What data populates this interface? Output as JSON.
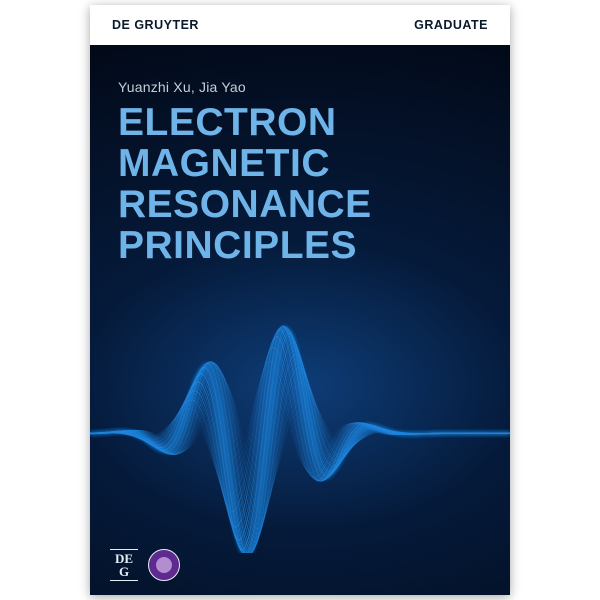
{
  "header": {
    "publisher": "De Gruyter",
    "series": "Graduate",
    "bar_bg": "#ffffff",
    "publisher_color": "#0a1a2a",
    "series_color": "#0a1a2a"
  },
  "panel": {
    "gradient_top": "#07244a",
    "gradient_mid": "#051a3a",
    "gradient_bottom": "#020816",
    "radial_center": "#0e3d78",
    "radial_edge": "#04122b"
  },
  "authors": {
    "text": "Yuanzhi Xu, Jia Yao",
    "color": "#c2d1d9"
  },
  "title": {
    "line1": "Electron",
    "line2": "Magnetic",
    "line3": "Resonance",
    "line4": "Principles",
    "color": "#6fb4e8"
  },
  "wave": {
    "stroke": "#1a7bd4",
    "stroke_light": "#2f9cf2",
    "glow": "#0e6ad4",
    "opacity_min": 0.1,
    "opacity_max": 0.55,
    "line_count": 36
  },
  "logos": {
    "dg_text": "DE G",
    "dg_color": "#e6eef5",
    "dg_border": "#e6eef5",
    "partner_bg": "#5e2a8f",
    "partner_inner": "#b28ed1",
    "partner_border": "#e6eef5"
  }
}
